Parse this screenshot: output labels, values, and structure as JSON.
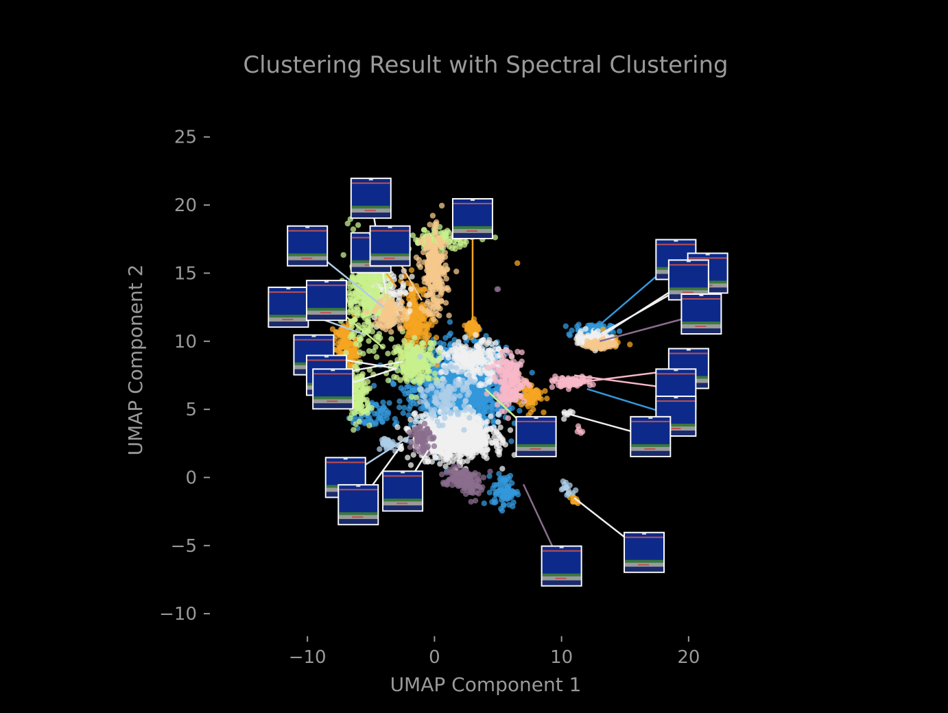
{
  "chart_data": {
    "type": "scatter",
    "title": "Clustering Result with Spectral Clustering",
    "xlabel": "UMAP Component 1",
    "ylabel": "UMAP Component 2",
    "xlim": [
      -18,
      26
    ],
    "ylim": [
      -11,
      27
    ],
    "xticks": [
      -10,
      0,
      10,
      20
    ],
    "yticks": [
      -10,
      -5,
      0,
      5,
      10,
      15,
      20,
      25
    ],
    "grid": false,
    "background": "#000000",
    "text_color": "#9a9a9a",
    "series": [
      {
        "color": "#3498db",
        "clusters": [
          [
            2.0,
            6.5,
            3.0,
            2.5,
            1400
          ],
          [
            12.5,
            10.8,
            1.2,
            0.4,
            120
          ],
          [
            -5,
            4.5,
            1.2,
            0.8,
            60
          ],
          [
            5.5,
            -1.0,
            0.8,
            1.0,
            80
          ]
        ]
      },
      {
        "color": "#f5a623",
        "clusters": [
          [
            3.0,
            11.0,
            0.4,
            0.5,
            80
          ],
          [
            -1.5,
            11.5,
            1.0,
            2.5,
            220
          ],
          [
            -7.0,
            9.5,
            0.7,
            1.5,
            150
          ],
          [
            7.5,
            6.0,
            0.8,
            0.8,
            80
          ],
          [
            13.0,
            10.0,
            1.2,
            0.4,
            100
          ],
          [
            11.0,
            -1.6,
            0.3,
            0.3,
            12
          ],
          [
            6.5,
            15.7,
            0.05,
            0.05,
            1
          ]
        ]
      },
      {
        "color": "#f0f0f0",
        "clusters": [
          [
            1.5,
            3.0,
            2.5,
            1.3,
            1100
          ],
          [
            3.0,
            8.5,
            2.0,
            1.2,
            250
          ],
          [
            -4.0,
            13.5,
            1.5,
            1.5,
            180
          ],
          [
            12.5,
            10.2,
            1.2,
            0.5,
            80
          ],
          [
            10.5,
            4.5,
            0.4,
            0.3,
            8
          ]
        ]
      },
      {
        "color": "#c8f08c",
        "clusters": [
          [
            -5.5,
            13.5,
            1.5,
            3.0,
            320
          ],
          [
            -1.5,
            8.5,
            1.5,
            1.3,
            220
          ],
          [
            -6.0,
            6.0,
            0.8,
            1.5,
            150
          ],
          [
            0.5,
            17.5,
            2.0,
            0.6,
            120
          ]
        ]
      },
      {
        "color": "#f5c88c",
        "clusters": [
          [
            0.0,
            15.0,
            0.8,
            2.5,
            250
          ],
          [
            -3.5,
            12.0,
            1.0,
            1.0,
            90
          ],
          [
            13.0,
            9.8,
            1.0,
            0.3,
            60
          ]
        ]
      },
      {
        "color": "#f8b8c8",
        "clusters": [
          [
            6.0,
            7.0,
            1.0,
            1.5,
            180
          ],
          [
            10.5,
            7.0,
            1.5,
            0.3,
            70
          ],
          [
            11.5,
            3.5,
            0.3,
            0.3,
            5
          ]
        ]
      },
      {
        "color": "#8b6e8e",
        "clusters": [
          [
            -1.0,
            3.0,
            0.6,
            1.0,
            70
          ],
          [
            2.0,
            0.0,
            1.2,
            0.6,
            110
          ],
          [
            3.0,
            -0.8,
            0.6,
            0.6,
            40
          ],
          [
            5.0,
            13.8,
            0.1,
            0.1,
            2
          ]
        ]
      },
      {
        "color": "#aecde8",
        "clusters": [
          [
            -3.5,
            2.5,
            0.6,
            0.5,
            30
          ],
          [
            10.5,
            -1.0,
            0.4,
            0.4,
            15
          ],
          [
            1.0,
            6.0,
            1.5,
            1.5,
            120
          ]
        ]
      }
    ],
    "annotations": [
      {
        "px": [
          -5.0,
          20.5
        ],
        "pt": [
          -3.8,
          13.5
        ],
        "color": "#f0f0f0",
        "order": 1
      },
      {
        "px": [
          -10.0,
          17.0
        ],
        "pt": [
          -4.0,
          12.5
        ],
        "color": "#aecde8",
        "order": 1
      },
      {
        "px": [
          -5.0,
          16.5
        ],
        "pt": [
          -3.0,
          14.0
        ],
        "color": "#f5a623",
        "order": 1
      },
      {
        "px": [
          -3.5,
          17.0
        ],
        "pt": [
          -1.0,
          13.0
        ],
        "color": "#f5c88c",
        "order": 1
      },
      {
        "px": [
          3.0,
          19.0
        ],
        "pt": [
          3.0,
          11.0
        ],
        "color": "#f5a623",
        "order": 1
      },
      {
        "px": [
          -11.5,
          12.5
        ],
        "pt": [
          -5.5,
          10.5
        ],
        "color": "#aecde8",
        "order": 1
      },
      {
        "px": [
          -8.5,
          13.0
        ],
        "pt": [
          -4.0,
          9.5
        ],
        "color": "#c8f08c",
        "order": 1
      },
      {
        "px": [
          -9.5,
          9.0
        ],
        "pt": [
          -3.0,
          8.0
        ],
        "color": "#f0f0f0",
        "order": 1
      },
      {
        "px": [
          -8.5,
          7.5
        ],
        "pt": [
          -2.5,
          8.5
        ],
        "color": "#f0f0f0",
        "order": 1
      },
      {
        "px": [
          -8.0,
          6.5
        ],
        "pt": [
          -3.0,
          8.0
        ],
        "color": "#f0f0f0",
        "order": 1
      },
      {
        "px": [
          19.0,
          16.0
        ],
        "pt": [
          12.5,
          10.8
        ],
        "color": "#3498db",
        "order": 1
      },
      {
        "px": [
          21.5,
          15.0
        ],
        "pt": [
          13.0,
          10.5
        ],
        "color": "#f0f0f0",
        "order": 1
      },
      {
        "px": [
          20.0,
          14.5
        ],
        "pt": [
          12.8,
          10.2
        ],
        "color": "#f0f0f0",
        "order": 1
      },
      {
        "px": [
          21.0,
          12.0
        ],
        "pt": [
          13.0,
          10.0
        ],
        "color": "#8b6e8e",
        "order": 1
      },
      {
        "px": [
          20.0,
          8.0
        ],
        "pt": [
          11.5,
          7.0
        ],
        "color": "#f8b8c8",
        "order": 1
      },
      {
        "px": [
          19.0,
          6.5
        ],
        "pt": [
          11.0,
          7.5
        ],
        "color": "#f8b8c8",
        "order": 1
      },
      {
        "px": [
          19.0,
          4.5
        ],
        "pt": [
          12.0,
          6.5
        ],
        "color": "#3498db",
        "order": 1
      },
      {
        "px": [
          17.0,
          3.0
        ],
        "pt": [
          10.0,
          4.8
        ],
        "color": "#f0f0f0",
        "order": 1
      },
      {
        "px": [
          8.0,
          3.0
        ],
        "pt": [
          4.0,
          6.5
        ],
        "color": "#c8f08c",
        "order": 1
      },
      {
        "px": [
          -7.0,
          0.0
        ],
        "pt": [
          -2.0,
          3.0
        ],
        "color": "#aecde8",
        "order": 1
      },
      {
        "px": [
          -6.0,
          -2.0
        ],
        "pt": [
          -2.5,
          2.5
        ],
        "color": "#f0f0f0",
        "order": 1
      },
      {
        "px": [
          -2.5,
          -1.0
        ],
        "pt": [
          -0.5,
          2.0
        ],
        "color": "#f0f0f0",
        "order": 1
      },
      {
        "px": [
          10.0,
          -6.5
        ],
        "pt": [
          7.0,
          -0.5
        ],
        "color": "#8b6e8e",
        "order": 1
      },
      {
        "px": [
          16.5,
          -5.5
        ],
        "pt": [
          11.0,
          -1.5
        ],
        "color": "#f0f0f0",
        "order": 1
      }
    ]
  }
}
